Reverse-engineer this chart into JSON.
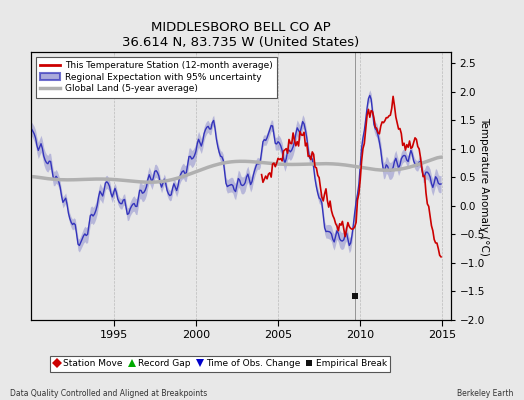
{
  "title": "MIDDLESBORO BELL CO AP",
  "subtitle": "36.614 N, 83.735 W (United States)",
  "ylabel": "Temperature Anomaly (°C)",
  "xlabel_left": "Data Quality Controlled and Aligned at Breakpoints",
  "xlabel_right": "Berkeley Earth",
  "ylim": [
    -2.0,
    2.7
  ],
  "xlim": [
    1990.0,
    2015.5
  ],
  "xticks": [
    1995,
    2000,
    2005,
    2010,
    2015
  ],
  "yticks": [
    -2,
    -1.5,
    -1,
    -0.5,
    0,
    0.5,
    1,
    1.5,
    2,
    2.5
  ],
  "bg_color": "#e8e8e8",
  "plot_bg_color": "#e8e8e8",
  "regional_color": "#3333bb",
  "regional_fill_color": "#8888cc",
  "station_color": "#cc0000",
  "global_color": "#b0b0b0",
  "empirical_break_year": 2009.7,
  "empirical_break_value": -1.58,
  "legend_labels": [
    "This Temperature Station (12-month average)",
    "Regional Expectation with 95% uncertainty",
    "Global Land (5-year average)"
  ],
  "marker_legend": [
    "Station Move",
    "Record Gap",
    "Time of Obs. Change",
    "Empirical Break"
  ],
  "marker_colors": [
    "#cc0000",
    "#00aa00",
    "#0000cc",
    "#111111"
  ],
  "marker_styles": [
    "D",
    "^",
    "v",
    "s"
  ]
}
